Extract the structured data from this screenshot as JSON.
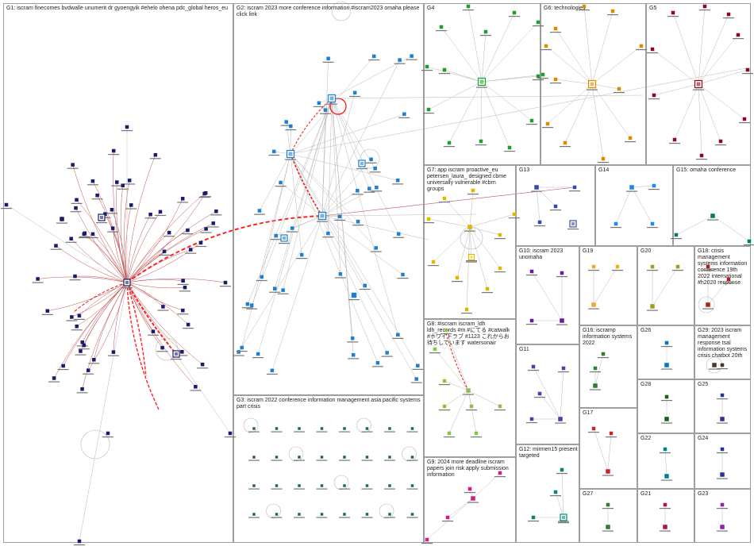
{
  "groups": [
    {
      "id": "G1",
      "label": "G1: iscram finecomes bvdwalle unumerit dr gyoengyik #ehelo ohena pdc_global heros_eu"
    },
    {
      "id": "G2",
      "label": "G2: iscram 2023 more conference information #iscram2023 omaha please click link"
    },
    {
      "id": "G4",
      "label": "G4"
    },
    {
      "id": "G6",
      "label": "G6: technologies"
    },
    {
      "id": "G5",
      "label": "G5"
    },
    {
      "id": "G7",
      "label": "G7: app iscram proactive_eu petersen_laura_ designed cbme universally vulnerable #cbrn groups"
    },
    {
      "id": "G13",
      "label": "G13"
    },
    {
      "id": "G14",
      "label": "G14"
    },
    {
      "id": "G15",
      "label": "G15: omaha conference"
    },
    {
      "id": "G10",
      "label": "G10: iscram 2023 unomaha"
    },
    {
      "id": "G19",
      "label": "G19"
    },
    {
      "id": "G20",
      "label": "G20"
    },
    {
      "id": "G18",
      "label": "G18: crisis management systems information conference 19th 2022 international #h2020 response"
    },
    {
      "id": "G8",
      "label": "G8: #iscram iscram_ldh ldh_records #m #にてる #catwalk #ホワイトラブ #1123 これからお待ちしています watersonair"
    },
    {
      "id": "G16",
      "label": "G16: iscramp information systems 2022"
    },
    {
      "id": "G26",
      "label": "G26"
    },
    {
      "id": "G29",
      "label": "G29: 2023 iscram management response tsal information systems crisis chatbot 20th"
    },
    {
      "id": "G11",
      "label": "G11"
    },
    {
      "id": "G28",
      "label": "G28"
    },
    {
      "id": "G25",
      "label": "G25"
    },
    {
      "id": "G3",
      "label": "G3: iscram 2022 conference information management asia pacific systems part crisis"
    },
    {
      "id": "G17",
      "label": "G17"
    },
    {
      "id": "G22",
      "label": "G22"
    },
    {
      "id": "G24",
      "label": "G24"
    },
    {
      "id": "G12",
      "label": "G12: mirmen15 present targeted"
    },
    {
      "id": "G9",
      "label": "G9: 2024 more deadline iscram papers join risk apply submission information"
    },
    {
      "id": "G27",
      "label": "G27"
    },
    {
      "id": "G21",
      "label": "G21"
    },
    {
      "id": "G23",
      "label": "G23"
    }
  ],
  "colors": {
    "G1": "#1a1a6e",
    "G2": "#1e7fd0",
    "G3": "#1e6b46",
    "G4": "#1f9e2e",
    "G5": "#8b0a1e",
    "G6": "#e08a00",
    "G7": "#e0b800",
    "G8": "#8bc34a",
    "G9": "#d81b8c",
    "G10": "#6a1b9a",
    "G11": "#5e35b1",
    "G12": "#00897b",
    "G13": "#3949ab",
    "G14": "#1e88e5",
    "G15": "#00796b",
    "G16": "#2e7d32",
    "G17": "#c62828",
    "G18": "#b71c1c",
    "G19": "#f9a825",
    "G20": "#9e9d24",
    "G21": "#ad1457",
    "G22": "#00838f",
    "G23": "#8e24aa",
    "G24": "#283593",
    "G25": "#283593",
    "G26": "#0277bd",
    "G27": "#2e7d32",
    "G28": "#1b5e20",
    "G29": "#4e342e",
    "edge": "#b9b9b9",
    "edge_strong": "#ff2020",
    "edge_red": "#c05050"
  }
}
